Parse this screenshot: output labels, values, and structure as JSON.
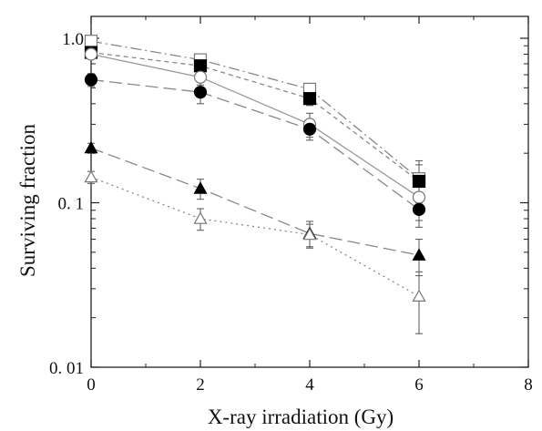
{
  "chart_data": {
    "type": "line",
    "title": "",
    "xlabel": "X-ray irradiation (Gy)",
    "ylabel": "Surviving fraction",
    "xlim": [
      0,
      8
    ],
    "ylim": [
      0.01,
      1.0
    ],
    "yscale": "log",
    "grid": false,
    "legend": "none",
    "x_ticks": [
      {
        "value": 0,
        "label": "0"
      },
      {
        "value": 2,
        "label": "2"
      },
      {
        "value": 4,
        "label": "4"
      },
      {
        "value": 6,
        "label": "6"
      },
      {
        "value": 8,
        "label": "8"
      }
    ],
    "y_ticks": [
      {
        "value": 1.0,
        "label": "1.0"
      },
      {
        "value": 0.1,
        "label": "0. 1"
      },
      {
        "value": 0.01,
        "label": "0. 01"
      }
    ],
    "series": [
      {
        "marker": "open-square",
        "line": "dash-dot",
        "color": "#888888",
        "x": [
          0,
          2,
          4,
          6
        ],
        "y": [
          0.96,
          0.74,
          0.49,
          0.14
        ],
        "err": [
          0.07,
          0.06,
          0.04,
          0.04
        ]
      },
      {
        "marker": "filled-square",
        "line": "short-dash",
        "color": "#888888",
        "x": [
          0,
          2,
          4,
          6
        ],
        "y": [
          0.82,
          0.68,
          0.43,
          0.135
        ],
        "err": [
          0.06,
          0.06,
          0.04,
          0.035
        ]
      },
      {
        "marker": "open-circle",
        "line": "solid",
        "color": "#999999",
        "x": [
          0,
          2,
          4,
          6
        ],
        "y": [
          0.8,
          0.58,
          0.3,
          0.108
        ],
        "err": [
          0.05,
          0.06,
          0.05,
          0.03
        ]
      },
      {
        "marker": "filled-circle",
        "line": "long-dash",
        "color": "#888888",
        "x": [
          0,
          2,
          4,
          6
        ],
        "y": [
          0.56,
          0.47,
          0.28,
          0.091
        ],
        "err": [
          0.05,
          0.07,
          0.04,
          0.02
        ]
      },
      {
        "marker": "filled-triangle",
        "line": "long-dash",
        "color": "#888888",
        "x": [
          0,
          2,
          4,
          6
        ],
        "y": [
          0.215,
          0.122,
          0.065,
          0.048
        ],
        "err": [
          0.015,
          0.017,
          0.012,
          0.012
        ]
      },
      {
        "marker": "open-triangle",
        "line": "dotted",
        "color": "#888888",
        "x": [
          0,
          2,
          4,
          6
        ],
        "y": [
          0.143,
          0.08,
          0.064,
          0.027
        ],
        "err": [
          0.012,
          0.012,
          0.01,
          0.011
        ]
      }
    ]
  }
}
